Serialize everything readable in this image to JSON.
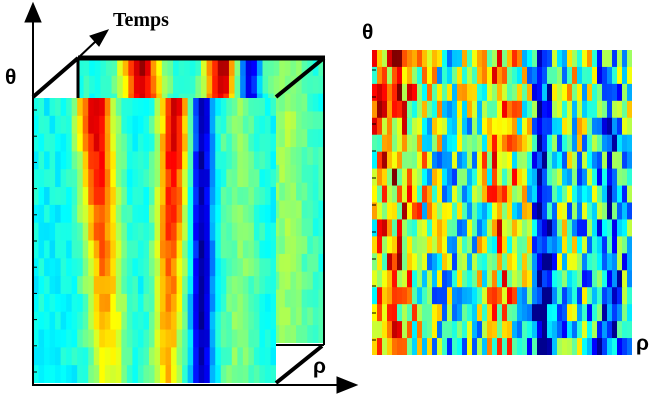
{
  "labels": {
    "time_axis": "Temps",
    "theta_left": "θ",
    "theta_right": "θ",
    "rho_left": "ρ",
    "rho_right": "ρ"
  },
  "colormap": [
    "#00008f",
    "#0000ff",
    "#0080ff",
    "#00ffff",
    "#80ff80",
    "#ffff00",
    "#ff8000",
    "#ff0000",
    "#800000"
  ],
  "stack": {
    "layers": 2,
    "columns": 44,
    "rows": 16
  },
  "single": {
    "columns": 52,
    "rows": 18
  }
}
